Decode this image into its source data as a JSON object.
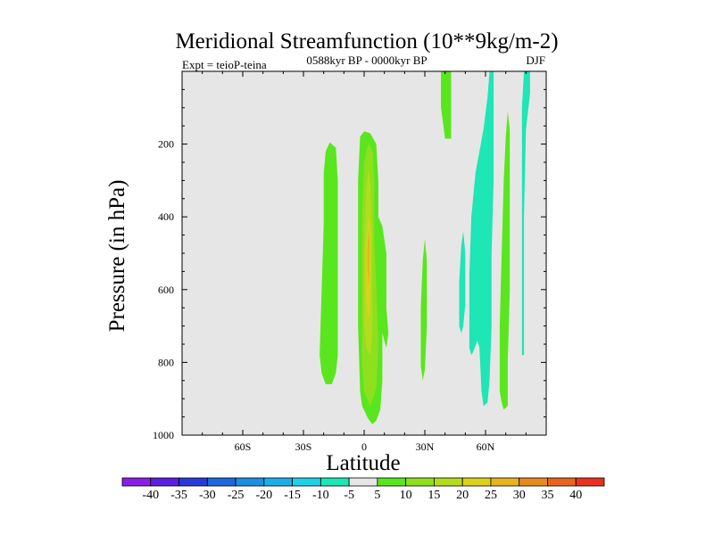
{
  "chart_data": {
    "type": "contour",
    "title": "Meridional Streamfunction (10**9kg/m-2)",
    "left_string": "Expt = teioP-teina",
    "center_string": "0588kyr BP - 0000kyr BP",
    "right_string": "DJF",
    "xlabel": "Latitude",
    "ylabel": "Pressure (in hPa)",
    "xlim": [
      -90,
      90
    ],
    "ylim": [
      1000,
      0
    ],
    "xticks": [
      {
        "value": -60,
        "label": "60S"
      },
      {
        "value": -30,
        "label": "30S"
      },
      {
        "value": 0,
        "label": "0"
      },
      {
        "value": 30,
        "label": "30N"
      },
      {
        "value": 60,
        "label": "60N"
      }
    ],
    "yticks": [
      {
        "value": 200,
        "label": "200"
      },
      {
        "value": 400,
        "label": "400"
      },
      {
        "value": 600,
        "label": "600"
      },
      {
        "value": 800,
        "label": "800"
      },
      {
        "value": 1000,
        "label": "1000"
      }
    ],
    "levels": [
      -40,
      -35,
      -30,
      -25,
      -20,
      -15,
      -10,
      -5,
      5,
      10,
      15,
      20,
      25,
      30,
      35,
      40
    ],
    "colorbar_colors": [
      "#8a1ee6",
      "#5a1ee0",
      "#2a3ad8",
      "#1e66dc",
      "#1e8ee0",
      "#1eaee6",
      "#1ed2e6",
      "#1ee6b4",
      "#e6e6e6",
      "#5ae61e",
      "#8ee01e",
      "#b4dc1e",
      "#dcd21e",
      "#e6b41e",
      "#e68c1e",
      "#e6641e",
      "#e6321e"
    ],
    "regions": [
      {
        "level": 5,
        "color": "#5ae61e",
        "points": [
          [
            -22,
            780
          ],
          [
            -21,
            600
          ],
          [
            -20,
            420
          ],
          [
            -20,
            280
          ],
          [
            -19,
            220
          ],
          [
            -17,
            195
          ],
          [
            -14,
            210
          ],
          [
            -13,
            300
          ],
          [
            -13,
            450
          ],
          [
            -13,
            620
          ],
          [
            -13,
            780
          ],
          [
            -14,
            830
          ],
          [
            -16,
            860
          ],
          [
            -19,
            860
          ],
          [
            -21,
            830
          ]
        ]
      },
      {
        "level": 5,
        "color": "#5ae61e",
        "points": [
          [
            -2,
            880
          ],
          [
            -3,
            700
          ],
          [
            -3,
            500
          ],
          [
            -3,
            300
          ],
          [
            -2,
            180
          ],
          [
            0,
            165
          ],
          [
            3,
            170
          ],
          [
            6,
            200
          ],
          [
            7,
            300
          ],
          [
            7,
            400
          ],
          [
            9,
            425
          ],
          [
            11,
            500
          ],
          [
            11,
            650
          ],
          [
            12,
            720
          ],
          [
            11,
            760
          ],
          [
            9,
            720
          ],
          [
            9,
            850
          ],
          [
            8,
            930
          ],
          [
            6,
            960
          ],
          [
            4,
            970
          ],
          [
            2,
            955
          ],
          [
            -1,
            920
          ]
        ]
      },
      {
        "level": 10,
        "color": "#8ee01e",
        "points": [
          [
            -1,
            800
          ],
          [
            -1,
            600
          ],
          [
            -1,
            400
          ],
          [
            0,
            250
          ],
          [
            2,
            200
          ],
          [
            4,
            215
          ],
          [
            5,
            300
          ],
          [
            5,
            450
          ],
          [
            6,
            600
          ],
          [
            7,
            750
          ],
          [
            6,
            870
          ],
          [
            3,
            920
          ],
          [
            0,
            880
          ]
        ]
      },
      {
        "level": 15,
        "color": "#b4dc1e",
        "points": [
          [
            0,
            700
          ],
          [
            0,
            500
          ],
          [
            1,
            330
          ],
          [
            2,
            270
          ],
          [
            3,
            300
          ],
          [
            4,
            450
          ],
          [
            4,
            600
          ],
          [
            4,
            720
          ],
          [
            3,
            780
          ],
          [
            1,
            760
          ]
        ]
      },
      {
        "level": 20,
        "color": "#dcd21e",
        "points": [
          [
            1,
            620
          ],
          [
            1,
            480
          ],
          [
            2,
            400
          ],
          [
            3,
            430
          ],
          [
            3,
            530
          ],
          [
            3,
            640
          ],
          [
            2,
            680
          ]
        ]
      },
      {
        "level": 25,
        "color": "#e6b41e",
        "points": [
          [
            1.5,
            520
          ],
          [
            2,
            430
          ],
          [
            2.7,
            470
          ],
          [
            2.5,
            560
          ],
          [
            2,
            590
          ]
        ]
      },
      {
        "level": 5,
        "color": "#5ae61e",
        "points": [
          [
            28,
            760
          ],
          [
            28,
            650
          ],
          [
            29,
            520
          ],
          [
            30,
            460
          ],
          [
            31,
            520
          ],
          [
            31,
            700
          ],
          [
            30,
            820
          ],
          [
            29,
            850
          ],
          [
            28,
            810
          ]
        ]
      },
      {
        "level": 5,
        "color": "#5ae61e",
        "points": [
          [
            38,
            100
          ],
          [
            38,
            0
          ],
          [
            43,
            0
          ],
          [
            43,
            100
          ],
          [
            43,
            185
          ],
          [
            40,
            185
          ]
        ]
      },
      {
        "level": 5,
        "color": "#5ae61e",
        "points": [
          [
            67,
            880
          ],
          [
            67,
            700
          ],
          [
            68,
            500
          ],
          [
            69,
            300
          ],
          [
            70,
            180
          ],
          [
            71,
            110
          ],
          [
            72,
            160
          ],
          [
            72,
            400
          ],
          [
            72,
            600
          ],
          [
            71,
            800
          ],
          [
            71,
            920
          ],
          [
            69,
            930
          ],
          [
            68,
            910
          ]
        ]
      },
      {
        "level": -5,
        "color": "#1ee6b4",
        "points": [
          [
            47,
            700
          ],
          [
            47,
            580
          ],
          [
            48,
            480
          ],
          [
            49,
            440
          ],
          [
            50,
            500
          ],
          [
            50,
            640
          ],
          [
            49,
            700
          ],
          [
            48,
            720
          ]
        ]
      },
      {
        "level": -5,
        "color": "#1ee6b4",
        "points": [
          [
            52,
            760
          ],
          [
            52,
            560
          ],
          [
            53,
            400
          ],
          [
            55,
            280
          ],
          [
            57,
            220
          ],
          [
            59,
            160
          ],
          [
            61,
            70
          ],
          [
            62,
            0
          ],
          [
            64,
            0
          ],
          [
            64,
            130
          ],
          [
            64,
            300
          ],
          [
            63,
            500
          ],
          [
            63,
            700
          ],
          [
            62,
            850
          ],
          [
            61,
            910
          ],
          [
            59,
            920
          ],
          [
            58,
            880
          ],
          [
            57,
            760
          ],
          [
            56,
            740
          ],
          [
            54,
            770
          ],
          [
            53,
            780
          ]
        ]
      },
      {
        "level": -5,
        "color": "#1ee6b4",
        "points": [
          [
            78,
            780
          ],
          [
            78,
            600
          ],
          [
            78,
            350
          ],
          [
            78,
            100
          ],
          [
            79,
            0
          ],
          [
            82,
            0
          ],
          [
            82,
            60
          ],
          [
            80,
            160
          ],
          [
            79,
            400
          ],
          [
            79,
            640
          ],
          [
            79,
            780
          ]
        ]
      }
    ]
  }
}
